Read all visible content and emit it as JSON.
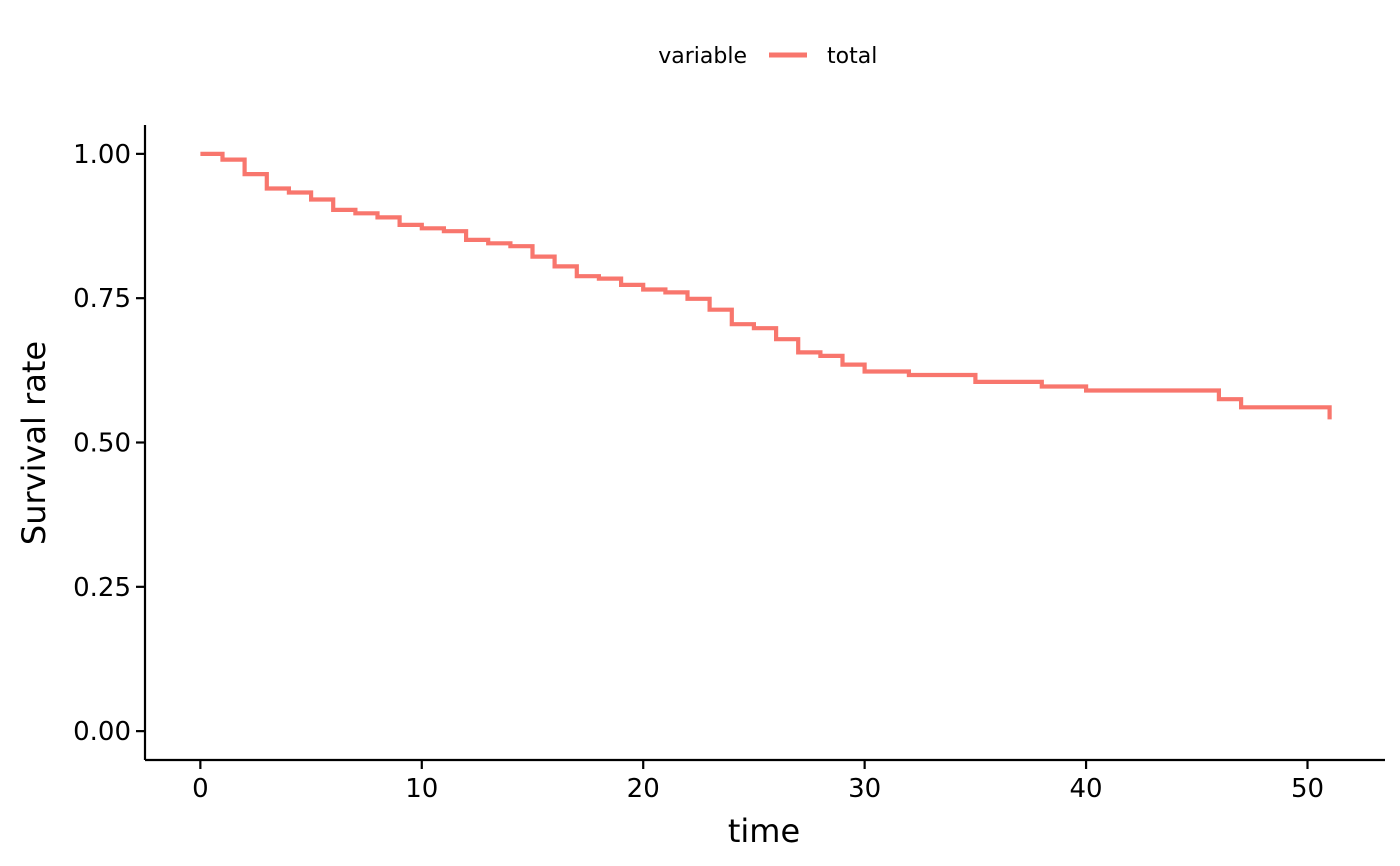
{
  "chart_data": {
    "type": "line",
    "step": true,
    "xlabel": "time",
    "ylabel": "Survival rate",
    "xlim": [
      -2.5,
      53.5
    ],
    "ylim": [
      -0.05,
      1.05
    ],
    "x_ticks": [
      0,
      10,
      20,
      30,
      40,
      50
    ],
    "x_tick_labels": [
      "0",
      "10",
      "20",
      "30",
      "40",
      "50"
    ],
    "y_ticks": [
      0,
      0.25,
      0.5,
      0.75,
      1.0
    ],
    "y_tick_labels": [
      "0.00",
      "0.25",
      "0.50",
      "0.75",
      "1.00"
    ],
    "grid": false,
    "legend": {
      "position": "top",
      "title": "variable",
      "entries": [
        {
          "name": "total",
          "color": "#F8766D"
        }
      ]
    },
    "series": [
      {
        "name": "total",
        "color": "#F8766D",
        "x": [
          0,
          1,
          2,
          3,
          4,
          5,
          6,
          7,
          8,
          9,
          10,
          11,
          12,
          13,
          14,
          15,
          16,
          17,
          18,
          19,
          20,
          21,
          22,
          23,
          24,
          25,
          26,
          27,
          28,
          29,
          30,
          32,
          35,
          38,
          40,
          46,
          47,
          51
        ],
        "y": [
          1.0,
          0.99,
          0.965,
          0.94,
          0.933,
          0.921,
          0.903,
          0.897,
          0.89,
          0.877,
          0.871,
          0.866,
          0.851,
          0.845,
          0.84,
          0.822,
          0.805,
          0.788,
          0.784,
          0.773,
          0.765,
          0.76,
          0.749,
          0.73,
          0.705,
          0.698,
          0.679,
          0.656,
          0.65,
          0.635,
          0.623,
          0.617,
          0.605,
          0.597,
          0.59,
          0.575,
          0.561,
          0.54
        ]
      }
    ]
  }
}
